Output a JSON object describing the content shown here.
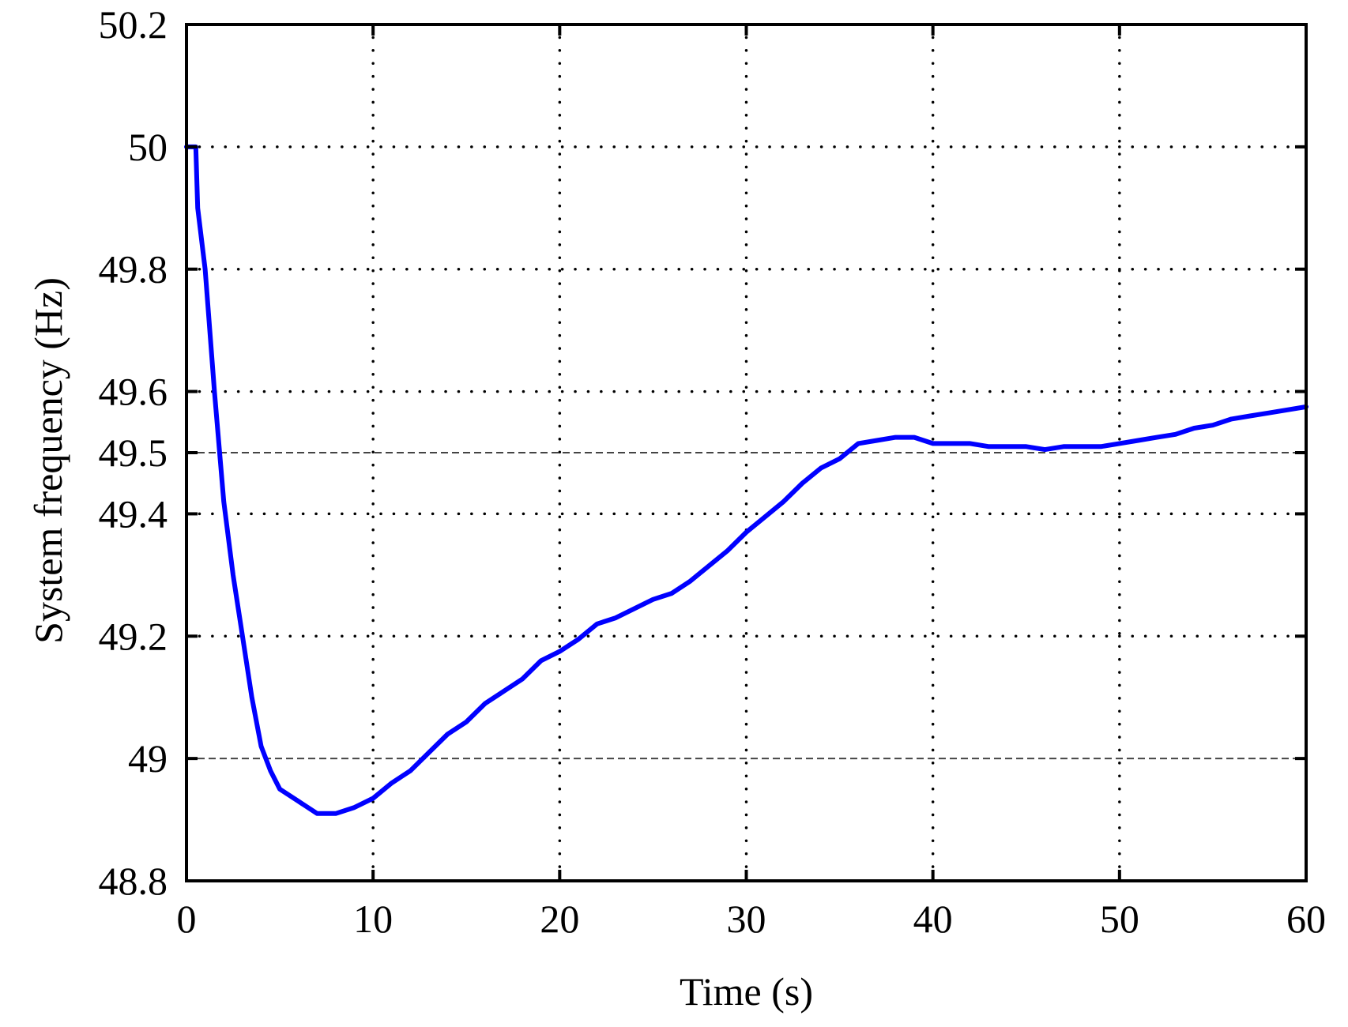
{
  "chart_data": {
    "type": "line",
    "title": "",
    "xlabel": "Time (s)",
    "ylabel": "System frequency (Hz)",
    "xlim": [
      0,
      60
    ],
    "ylim": [
      48.8,
      50.2
    ],
    "xticks": [
      0,
      10,
      20,
      30,
      40,
      50,
      60
    ],
    "xtick_labels": [
      "0",
      "10",
      "20",
      "30",
      "40",
      "50",
      "60"
    ],
    "yticks": [
      48.8,
      49,
      49.2,
      49.4,
      49.5,
      49.6,
      49.8,
      50,
      50.2
    ],
    "ytick_labels": [
      "48.8",
      "49",
      "49.2",
      "49.4",
      "49.5",
      "49.6",
      "49.8",
      "50",
      "50.2"
    ],
    "grid": true,
    "grid_style": "dotted",
    "reference_lines": [
      {
        "y": 49.5,
        "style": "dashed",
        "color": "#444444"
      },
      {
        "y": 49.0,
        "style": "dashed",
        "color": "#444444"
      }
    ],
    "legend": null,
    "series": [
      {
        "name": "System frequency",
        "color": "#0000ff",
        "x": [
          0,
          0.5,
          0.6,
          1,
          1.5,
          2,
          2.5,
          3,
          3.5,
          4,
          4.5,
          5,
          6,
          7,
          8,
          9,
          10,
          11,
          12,
          13,
          14,
          15,
          16,
          17,
          18,
          19,
          20,
          21,
          22,
          23,
          24,
          25,
          26,
          27,
          28,
          29,
          30,
          31,
          32,
          33,
          34,
          35,
          36,
          37,
          38,
          39,
          40,
          41,
          42,
          43,
          44,
          45,
          46,
          47,
          48,
          49,
          50,
          51,
          52,
          53,
          54,
          55,
          56,
          57,
          58,
          59,
          60
        ],
        "values": [
          50.0,
          50.0,
          49.9,
          49.8,
          49.6,
          49.42,
          49.3,
          49.2,
          49.1,
          49.02,
          48.98,
          48.95,
          48.93,
          48.91,
          48.91,
          48.92,
          48.935,
          48.96,
          48.98,
          49.01,
          49.04,
          49.06,
          49.09,
          49.11,
          49.13,
          49.16,
          49.175,
          49.195,
          49.22,
          49.23,
          49.245,
          49.26,
          49.27,
          49.29,
          49.315,
          49.34,
          49.37,
          49.395,
          49.42,
          49.45,
          49.475,
          49.49,
          49.515,
          49.52,
          49.525,
          49.525,
          49.515,
          49.515,
          49.515,
          49.51,
          49.51,
          49.51,
          49.505,
          49.51,
          49.51,
          49.51,
          49.515,
          49.52,
          49.525,
          49.53,
          49.54,
          49.545,
          49.555,
          49.56,
          49.565,
          49.57,
          49.575
        ]
      }
    ]
  },
  "colors": {
    "line": "#0000ff",
    "axis": "#000000",
    "grid": "#000000",
    "reference": "#444444"
  }
}
